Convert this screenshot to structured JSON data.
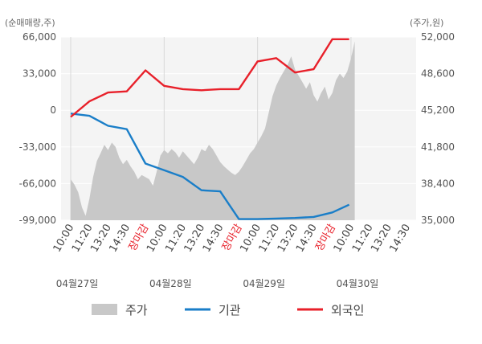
{
  "chart_data": {
    "type": "line",
    "left_unit_label": "(순매매량,주)",
    "right_unit_label": "(주가,원)",
    "y_left": {
      "ticks": [
        "66,000",
        "33,000",
        "0",
        "-33,000",
        "-66,000",
        "-99,000"
      ],
      "values": [
        66000,
        33000,
        0,
        -33000,
        -66000,
        -99000
      ],
      "range": [
        -99000,
        66000
      ]
    },
    "y_right": {
      "ticks": [
        "52,000",
        "48,600",
        "45,200",
        "41,800",
        "38,400",
        "35,000"
      ],
      "values": [
        52000,
        48600,
        45200,
        41800,
        38400,
        35000
      ],
      "range": [
        35000,
        52000
      ]
    },
    "x_ticks": [
      {
        "label": "10:00",
        "close": false
      },
      {
        "label": "11:20",
        "close": false
      },
      {
        "label": "13:20",
        "close": false
      },
      {
        "label": "14:30",
        "close": false
      },
      {
        "label": "장마감",
        "close": true
      },
      {
        "label": "10:00",
        "close": false
      },
      {
        "label": "11:20",
        "close": false
      },
      {
        "label": "13:20",
        "close": false
      },
      {
        "label": "14:30",
        "close": false
      },
      {
        "label": "장마감",
        "close": true
      },
      {
        "label": "10:00",
        "close": false
      },
      {
        "label": "11:20",
        "close": false
      },
      {
        "label": "13:20",
        "close": false
      },
      {
        "label": "14:30",
        "close": false
      },
      {
        "label": "장마감",
        "close": true
      },
      {
        "label": "10:00",
        "close": false
      },
      {
        "label": "11:20",
        "close": false
      },
      {
        "label": "13:20",
        "close": false
      },
      {
        "label": "14:30",
        "close": false
      }
    ],
    "dates": [
      "04월27일",
      "04월28일",
      "04월29일",
      "04월30일"
    ],
    "date_positions": [
      0,
      5,
      10,
      15
    ],
    "series": [
      {
        "name": "주가",
        "axis": "right",
        "kind": "area",
        "color": "#c8c8c8",
        "points": [
          [
            0,
            38800
          ],
          [
            0.2,
            38300
          ],
          [
            0.4,
            37600
          ],
          [
            0.6,
            36200
          ],
          [
            0.8,
            35400
          ],
          [
            1.0,
            37000
          ],
          [
            1.2,
            39000
          ],
          [
            1.4,
            40500
          ],
          [
            1.6,
            41200
          ],
          [
            1.8,
            42000
          ],
          [
            2.0,
            41500
          ],
          [
            2.2,
            42200
          ],
          [
            2.4,
            41800
          ],
          [
            2.6,
            40800
          ],
          [
            2.8,
            40200
          ],
          [
            3.0,
            40600
          ],
          [
            3.2,
            40000
          ],
          [
            3.4,
            39500
          ],
          [
            3.6,
            38800
          ],
          [
            3.8,
            39200
          ],
          [
            4.0,
            39000
          ],
          [
            4.2,
            38800
          ],
          [
            4.4,
            38200
          ],
          [
            4.6,
            39500
          ],
          [
            4.8,
            41000
          ],
          [
            5.0,
            41500
          ],
          [
            5.2,
            41200
          ],
          [
            5.4,
            41600
          ],
          [
            5.6,
            41300
          ],
          [
            5.8,
            40800
          ],
          [
            6.0,
            41400
          ],
          [
            6.2,
            41000
          ],
          [
            6.4,
            40600
          ],
          [
            6.6,
            40200
          ],
          [
            6.8,
            40800
          ],
          [
            7.0,
            41600
          ],
          [
            7.2,
            41400
          ],
          [
            7.4,
            42000
          ],
          [
            7.6,
            41600
          ],
          [
            7.8,
            41000
          ],
          [
            8.0,
            40400
          ],
          [
            8.2,
            40000
          ],
          [
            8.4,
            39700
          ],
          [
            8.6,
            39400
          ],
          [
            8.8,
            39200
          ],
          [
            9.0,
            39500
          ],
          [
            9.2,
            40000
          ],
          [
            9.4,
            40600
          ],
          [
            9.6,
            41200
          ],
          [
            9.8,
            41600
          ],
          [
            10.0,
            42200
          ],
          [
            10.2,
            42800
          ],
          [
            10.4,
            43500
          ],
          [
            10.6,
            45000
          ],
          [
            10.8,
            46500
          ],
          [
            11.0,
            47500
          ],
          [
            11.2,
            48200
          ],
          [
            11.4,
            48800
          ],
          [
            11.6,
            49400
          ],
          [
            11.8,
            50200
          ],
          [
            12.0,
            49000
          ],
          [
            12.2,
            48400
          ],
          [
            12.4,
            47800
          ],
          [
            12.6,
            47200
          ],
          [
            12.8,
            47800
          ],
          [
            13.0,
            46600
          ],
          [
            13.2,
            46000
          ],
          [
            13.4,
            46800
          ],
          [
            13.6,
            47400
          ],
          [
            13.8,
            46200
          ],
          [
            14.0,
            46800
          ],
          [
            14.2,
            48000
          ],
          [
            14.4,
            48600
          ],
          [
            14.6,
            48200
          ],
          [
            14.8,
            48800
          ],
          [
            15.0,
            50000
          ],
          [
            15.2,
            51600
          ]
        ]
      },
      {
        "name": "기관",
        "axis": "left",
        "kind": "line",
        "color": "#1a7ec8",
        "points": [
          [
            0,
            -3000
          ],
          [
            1,
            -5000
          ],
          [
            2,
            -14000
          ],
          [
            3,
            -17000
          ],
          [
            4,
            -48000
          ],
          [
            5,
            -54000
          ],
          [
            6,
            -60000
          ],
          [
            7,
            -72000
          ],
          [
            8,
            -73000
          ],
          [
            9,
            -98000
          ],
          [
            10,
            -98000
          ],
          [
            11,
            -97500
          ],
          [
            12,
            -97000
          ],
          [
            13,
            -96000
          ],
          [
            14,
            -92000
          ],
          [
            14.9,
            -85000
          ]
        ]
      },
      {
        "name": "외국인",
        "axis": "left",
        "kind": "line",
        "color": "#e8202a",
        "points": [
          [
            0,
            -6000
          ],
          [
            1,
            8000
          ],
          [
            2,
            16000
          ],
          [
            3,
            17000
          ],
          [
            4,
            36000
          ],
          [
            5,
            22000
          ],
          [
            6,
            19000
          ],
          [
            7,
            18000
          ],
          [
            8,
            19000
          ],
          [
            9,
            19000
          ],
          [
            10,
            44000
          ],
          [
            11,
            47000
          ],
          [
            12,
            34000
          ],
          [
            13,
            37000
          ],
          [
            14,
            64000
          ],
          [
            14.9,
            64000
          ]
        ]
      }
    ],
    "legend": [
      {
        "label": "주가",
        "color": "#c8c8c8",
        "kind": "area"
      },
      {
        "label": "기관",
        "color": "#1a7ec8",
        "kind": "line"
      },
      {
        "label": "외국인",
        "color": "#e8202a",
        "kind": "line"
      }
    ],
    "grid": true,
    "legend_position": "bottom"
  }
}
